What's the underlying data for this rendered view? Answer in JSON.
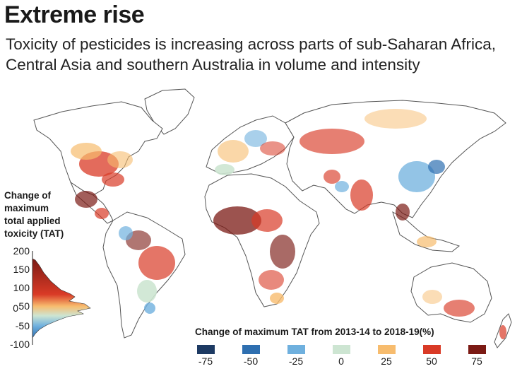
{
  "header": {
    "title": "Extreme rise",
    "subtitle": "Toxicity of pesticides is increasing across parts of sub-Saharan Africa, Central Asia and southern Australia in volume and intensity"
  },
  "histogram": {
    "title_lines": [
      "Change of",
      "maximum",
      "total applied",
      "toxicity (TAT)"
    ],
    "ticks": [
      "200",
      "150",
      "100",
      "50",
      "0",
      "-50",
      "-100"
    ]
  },
  "legend": {
    "title": "Change of maximum TAT from 2013-14 to 2018-19(%)",
    "items": [
      {
        "label": "-75",
        "color": "#1d3a63"
      },
      {
        "label": "-50",
        "color": "#2e6fb0"
      },
      {
        "label": "-25",
        "color": "#6fb0de"
      },
      {
        "label": "0",
        "color": "#cde5d2"
      },
      {
        "label": "25",
        "color": "#f7bc6e"
      },
      {
        "label": "50",
        "color": "#d93a26"
      },
      {
        "label": "75",
        "color": "#7b1a14"
      }
    ]
  }
}
